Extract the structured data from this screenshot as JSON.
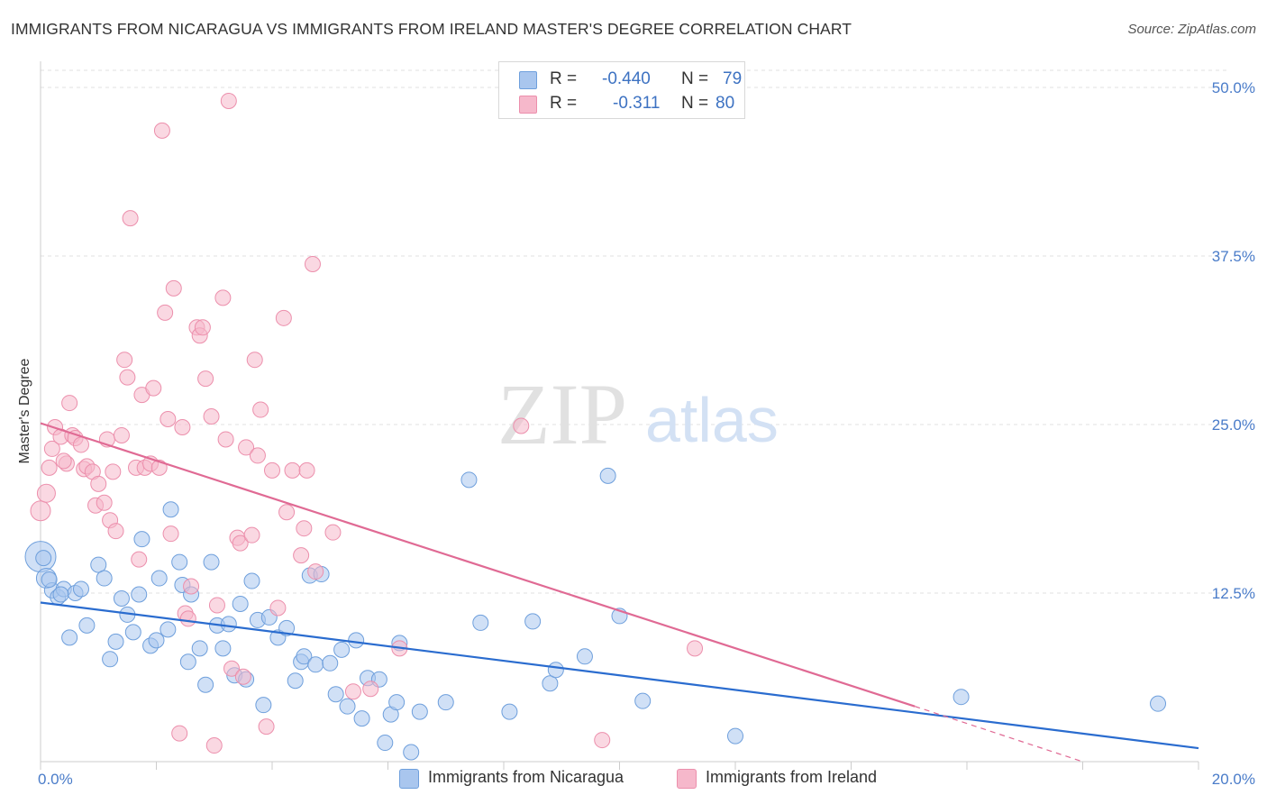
{
  "title": "IMMIGRANTS FROM NICARAGUA VS IMMIGRANTS FROM IRELAND MASTER'S DEGREE CORRELATION CHART",
  "source": "Source: ZipAtlas.com",
  "watermark": {
    "zip": "ZIP",
    "atlas": "atlas"
  },
  "legend": {
    "r_label": "R =",
    "n_label": "N =",
    "rows": [
      {
        "r": "-0.440",
        "n": "79",
        "color": "#a9c6ee"
      },
      {
        "r": "-0.311",
        "n": "80",
        "color": "#f6b8cb"
      }
    ]
  },
  "chart_data": {
    "type": "scatter",
    "title": "IMMIGRANTS FROM NICARAGUA VS IMMIGRANTS FROM IRELAND MASTER'S DEGREE CORRELATION CHART",
    "xlabel": "",
    "ylabel": "Master's Degree",
    "xlim": [
      0,
      20
    ],
    "ylim": [
      0,
      50
    ],
    "x_tick_labels": [
      "0.0%",
      "20.0%"
    ],
    "y_ticks": [
      12.5,
      25.0,
      37.5,
      50.0
    ],
    "y_tick_labels": [
      "12.5%",
      "25.0%",
      "37.5%",
      "50.0%"
    ],
    "grid": true,
    "legend_position": "top-center",
    "series": [
      {
        "name": "Immigrants from Nicaragua",
        "color": "#a9c6ee",
        "edge": "#6e9fdc",
        "line_color": "#2a6ccf",
        "trend": {
          "x": [
            0,
            20
          ],
          "y": [
            11.8,
            1.0
          ]
        },
        "points": [
          [
            0.0,
            15.2
          ],
          [
            0.1,
            13.6
          ],
          [
            0.2,
            12.7
          ],
          [
            0.3,
            12.2
          ],
          [
            0.4,
            12.8
          ],
          [
            0.5,
            9.2
          ],
          [
            0.6,
            12.5
          ],
          [
            0.7,
            12.8
          ],
          [
            0.8,
            10.1
          ],
          [
            1.0,
            14.6
          ],
          [
            1.1,
            13.6
          ],
          [
            1.2,
            7.6
          ],
          [
            1.3,
            8.9
          ],
          [
            1.4,
            12.1
          ],
          [
            1.5,
            10.9
          ],
          [
            1.6,
            9.6
          ],
          [
            1.7,
            12.4
          ],
          [
            1.75,
            16.5
          ],
          [
            1.9,
            8.6
          ],
          [
            2.0,
            9.0
          ],
          [
            2.05,
            13.6
          ],
          [
            2.2,
            9.8
          ],
          [
            2.25,
            18.7
          ],
          [
            2.4,
            14.8
          ],
          [
            2.45,
            13.1
          ],
          [
            2.55,
            7.4
          ],
          [
            2.6,
            12.4
          ],
          [
            2.75,
            8.4
          ],
          [
            2.85,
            5.7
          ],
          [
            2.95,
            14.8
          ],
          [
            3.05,
            10.1
          ],
          [
            3.15,
            8.4
          ],
          [
            3.25,
            10.2
          ],
          [
            3.35,
            6.4
          ],
          [
            3.45,
            11.7
          ],
          [
            3.55,
            6.1
          ],
          [
            3.65,
            13.4
          ],
          [
            3.75,
            10.5
          ],
          [
            3.85,
            4.2
          ],
          [
            3.95,
            10.7
          ],
          [
            4.1,
            9.2
          ],
          [
            4.25,
            9.9
          ],
          [
            4.4,
            6.0
          ],
          [
            4.5,
            7.4
          ],
          [
            4.55,
            7.8
          ],
          [
            4.65,
            13.8
          ],
          [
            4.75,
            7.2
          ],
          [
            4.85,
            13.9
          ],
          [
            5.0,
            7.3
          ],
          [
            5.1,
            5.0
          ],
          [
            5.2,
            8.3
          ],
          [
            5.3,
            4.1
          ],
          [
            5.45,
            9.0
          ],
          [
            5.55,
            3.2
          ],
          [
            5.65,
            6.2
          ],
          [
            5.85,
            6.1
          ],
          [
            5.95,
            1.4
          ],
          [
            6.05,
            3.5
          ],
          [
            6.15,
            4.4
          ],
          [
            6.2,
            8.8
          ],
          [
            6.4,
            0.7
          ],
          [
            6.55,
            3.7
          ],
          [
            7.0,
            4.4
          ],
          [
            7.4,
            20.9
          ],
          [
            7.6,
            10.3
          ],
          [
            8.1,
            3.7
          ],
          [
            8.5,
            10.4
          ],
          [
            8.8,
            5.8
          ],
          [
            8.9,
            6.8
          ],
          [
            9.4,
            7.8
          ],
          [
            9.8,
            21.2
          ],
          [
            10.0,
            10.8
          ],
          [
            10.4,
            4.5
          ],
          [
            12.0,
            1.9
          ],
          [
            15.9,
            4.8
          ],
          [
            19.3,
            4.3
          ],
          [
            0.05,
            15.1
          ],
          [
            0.15,
            13.5
          ],
          [
            0.35,
            12.4
          ]
        ]
      },
      {
        "name": "Immigrants from Ireland",
        "color": "#f6b8cb",
        "edge": "#ec8fac",
        "line_color": "#e06a94",
        "trend": {
          "x": [
            0,
            15.1
          ],
          "y": [
            25.1,
            4.1
          ]
        },
        "trend_dashed": {
          "x": [
            15.1,
            18.0
          ],
          "y": [
            4.1,
            0.0
          ]
        },
        "points": [
          [
            0.0,
            18.6
          ],
          [
            0.1,
            19.9
          ],
          [
            0.15,
            21.8
          ],
          [
            0.2,
            23.2
          ],
          [
            0.25,
            24.8
          ],
          [
            0.35,
            24.1
          ],
          [
            0.45,
            22.1
          ],
          [
            0.5,
            26.6
          ],
          [
            0.55,
            24.2
          ],
          [
            0.6,
            24.0
          ],
          [
            0.7,
            23.5
          ],
          [
            0.75,
            21.7
          ],
          [
            0.8,
            21.9
          ],
          [
            0.9,
            21.5
          ],
          [
            0.95,
            19.0
          ],
          [
            1.0,
            20.6
          ],
          [
            1.1,
            19.2
          ],
          [
            1.15,
            23.9
          ],
          [
            1.2,
            17.9
          ],
          [
            1.25,
            21.5
          ],
          [
            1.3,
            17.1
          ],
          [
            1.4,
            24.2
          ],
          [
            1.45,
            29.8
          ],
          [
            1.5,
            28.5
          ],
          [
            1.55,
            40.3
          ],
          [
            1.65,
            21.8
          ],
          [
            1.7,
            15.0
          ],
          [
            1.75,
            27.2
          ],
          [
            1.8,
            21.8
          ],
          [
            1.9,
            22.1
          ],
          [
            1.95,
            27.7
          ],
          [
            2.05,
            21.8
          ],
          [
            2.1,
            46.8
          ],
          [
            2.15,
            33.3
          ],
          [
            2.2,
            25.4
          ],
          [
            2.25,
            16.9
          ],
          [
            2.3,
            35.1
          ],
          [
            2.4,
            2.1
          ],
          [
            2.45,
            24.8
          ],
          [
            2.5,
            11.0
          ],
          [
            2.55,
            10.6
          ],
          [
            2.6,
            13.0
          ],
          [
            2.7,
            32.2
          ],
          [
            2.75,
            31.6
          ],
          [
            2.8,
            32.2
          ],
          [
            2.85,
            28.4
          ],
          [
            2.95,
            25.6
          ],
          [
            3.0,
            1.2
          ],
          [
            3.05,
            11.6
          ],
          [
            3.15,
            34.4
          ],
          [
            3.2,
            23.9
          ],
          [
            3.25,
            49.0
          ],
          [
            3.3,
            6.9
          ],
          [
            3.4,
            16.6
          ],
          [
            3.45,
            16.2
          ],
          [
            3.5,
            6.3
          ],
          [
            3.55,
            23.3
          ],
          [
            3.65,
            16.8
          ],
          [
            3.7,
            29.8
          ],
          [
            3.75,
            22.7
          ],
          [
            3.8,
            26.1
          ],
          [
            3.9,
            2.6
          ],
          [
            4.0,
            21.6
          ],
          [
            4.1,
            11.4
          ],
          [
            4.2,
            32.9
          ],
          [
            4.25,
            18.5
          ],
          [
            4.35,
            21.6
          ],
          [
            4.5,
            15.3
          ],
          [
            4.55,
            17.3
          ],
          [
            4.6,
            21.6
          ],
          [
            4.7,
            36.9
          ],
          [
            4.75,
            14.1
          ],
          [
            5.05,
            17.0
          ],
          [
            5.4,
            5.2
          ],
          [
            5.7,
            5.4
          ],
          [
            6.2,
            8.4
          ],
          [
            8.3,
            24.9
          ],
          [
            9.7,
            1.6
          ],
          [
            11.3,
            8.4
          ],
          [
            0.4,
            22.3
          ]
        ]
      }
    ]
  },
  "bottom_legend": [
    {
      "label": "Immigrants from Nicaragua",
      "color": "#a9c6ee"
    },
    {
      "label": "Immigrants from Ireland",
      "color": "#f6b8cb"
    }
  ]
}
